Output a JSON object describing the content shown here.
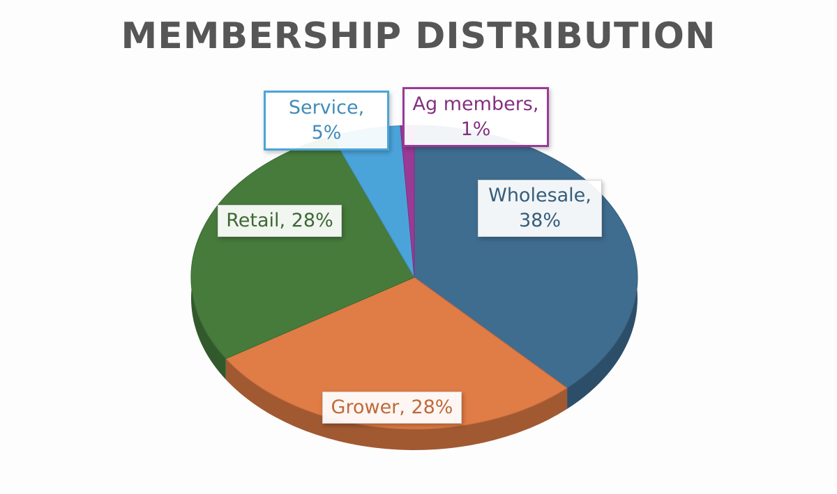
{
  "chart_data": {
    "type": "pie",
    "title": "MEMBERSHIP DISTRIBUTION",
    "values": [
      38,
      28,
      28,
      5,
      1
    ],
    "value_labels": [
      "Wholesale, 38%",
      "Grower, 28%",
      "Retail, 28%",
      "Service, 5%",
      "Ag members, 1%"
    ],
    "colors": [
      "#3f6d90",
      "#e07c45",
      "#467b3c",
      "#4ba4d9",
      "#9a3a97"
    ]
  }
}
